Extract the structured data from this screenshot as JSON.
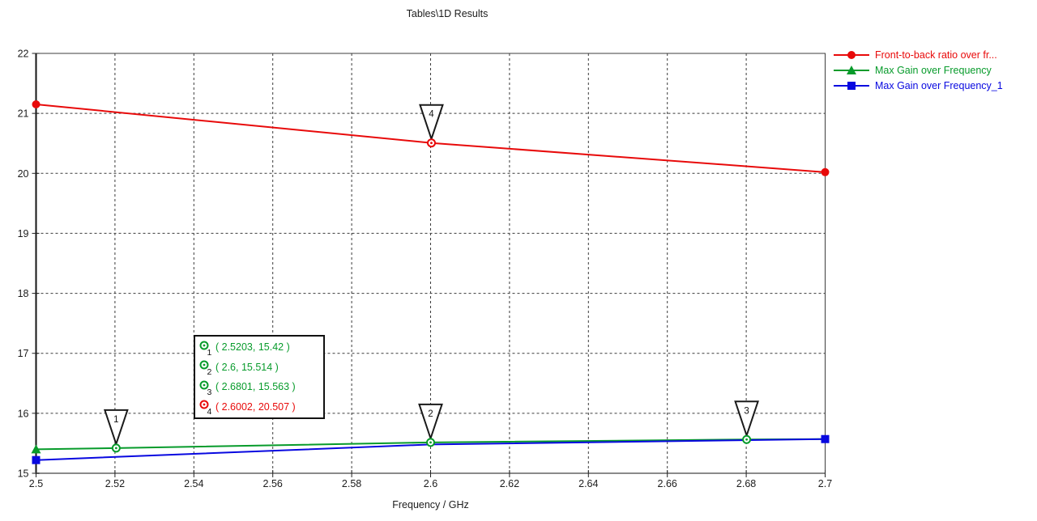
{
  "chart_data": {
    "type": "line",
    "title": "Tables\\1D Results",
    "xlabel": "Frequency / GHz",
    "ylabel": "",
    "xlim": [
      2.5,
      2.7
    ],
    "ylim": [
      15,
      22
    ],
    "x_ticks": [
      2.5,
      2.52,
      2.54,
      2.56,
      2.58,
      2.6,
      2.62,
      2.64,
      2.66,
      2.68,
      2.7
    ],
    "x_tick_labels": [
      "2.5",
      "2.52",
      "2.54",
      "2.56",
      "2.58",
      "2.6",
      "2.62",
      "2.64",
      "2.66",
      "2.68",
      "2.7"
    ],
    "y_ticks": [
      15,
      16,
      17,
      18,
      19,
      20,
      21,
      22
    ],
    "grid": true,
    "legend_position": "top-right",
    "series": [
      {
        "name": "Front-to-back ratio over fr...",
        "color": "#e80a0a",
        "marker": "circle",
        "x": [
          2.5,
          2.6002,
          2.7
        ],
        "y": [
          21.15,
          20.507,
          20.02
        ],
        "filled_marker_x": [
          2.5,
          2.7
        ]
      },
      {
        "name": "Max Gain over Frequency",
        "color": "#079b2b",
        "marker": "triangle",
        "x": [
          2.5,
          2.5203,
          2.6,
          2.6801,
          2.7
        ],
        "y": [
          15.4,
          15.42,
          15.514,
          15.563,
          15.57
        ],
        "filled_marker_x": [
          2.5
        ]
      },
      {
        "name": "Max Gain over Frequency_1",
        "color": "#0808e0",
        "marker": "square",
        "x": [
          2.5,
          2.6,
          2.7
        ],
        "y": [
          15.22,
          15.48,
          15.57
        ],
        "filled_marker_x": [
          2.5,
          2.7
        ]
      }
    ],
    "point_flags": [
      {
        "label": "1",
        "x": 2.5203,
        "y": 15.42,
        "color": "#079b2b"
      },
      {
        "label": "2",
        "x": 2.6,
        "y": 15.514,
        "color": "#079b2b"
      },
      {
        "label": "3",
        "x": 2.6801,
        "y": 15.563,
        "color": "#079b2b"
      },
      {
        "label": "4",
        "x": 2.6002,
        "y": 20.507,
        "color": "#e80a0a"
      }
    ],
    "annotation_box": {
      "entries": [
        {
          "label": "1",
          "text": "( 2.5203, 15.42 )",
          "color": "#079b2b"
        },
        {
          "label": "2",
          "text": "( 2.6, 15.514 )",
          "color": "#079b2b"
        },
        {
          "label": "3",
          "text": "( 2.6801, 15.563 )",
          "color": "#079b2b"
        },
        {
          "label": "4",
          "text": "( 2.6002, 20.507 )",
          "color": "#e80a0a"
        }
      ]
    }
  }
}
